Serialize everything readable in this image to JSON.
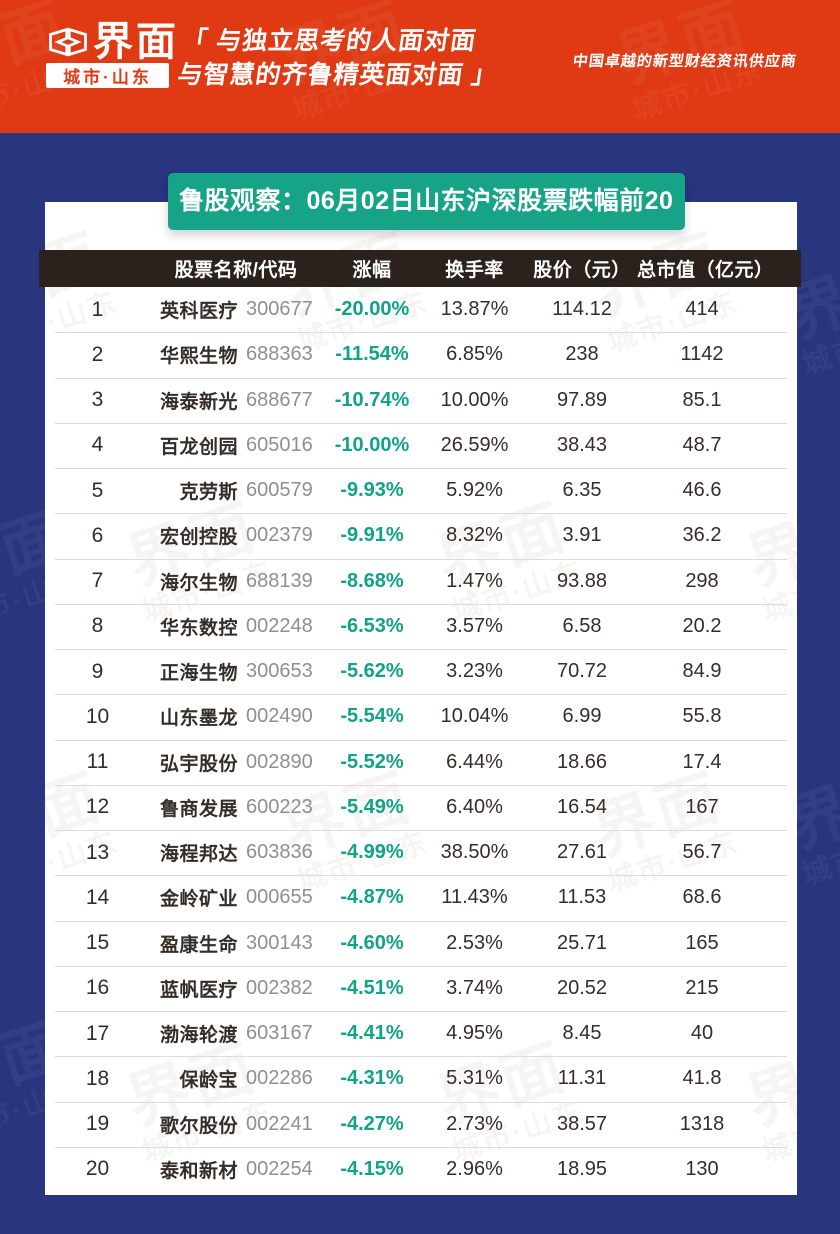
{
  "brand": {
    "name": "界面",
    "region": "城市·山东",
    "slogan_line1": "「 与独立思考的人面对面",
    "slogan_line2": "与智慧的齐鲁精英面对面 」",
    "tagline": "中国卓越的新型财经资讯供应商"
  },
  "banner": {
    "title": "鲁股观察：06月02日山东沪深股票跌幅前20"
  },
  "table": {
    "headers": {
      "name_code": "股票名称/代码",
      "change": "涨幅",
      "turnover": "换手率",
      "price": "股价（元）",
      "market_cap": "总市值（亿元）"
    },
    "rows": [
      {
        "rank": "1",
        "name": "英科医疗",
        "code": "300677",
        "change": "-20.00%",
        "turnover": "13.87%",
        "price": "114.12",
        "market_cap": "414"
      },
      {
        "rank": "2",
        "name": "华熙生物",
        "code": "688363",
        "change": "-11.54%",
        "turnover": "6.85%",
        "price": "238",
        "market_cap": "1142"
      },
      {
        "rank": "3",
        "name": "海泰新光",
        "code": "688677",
        "change": "-10.74%",
        "turnover": "10.00%",
        "price": "97.89",
        "market_cap": "85.1"
      },
      {
        "rank": "4",
        "name": "百龙创园",
        "code": "605016",
        "change": "-10.00%",
        "turnover": "26.59%",
        "price": "38.43",
        "market_cap": "48.7"
      },
      {
        "rank": "5",
        "name": "克劳斯",
        "code": "600579",
        "change": "-9.93%",
        "turnover": "5.92%",
        "price": "6.35",
        "market_cap": "46.6"
      },
      {
        "rank": "6",
        "name": "宏创控股",
        "code": "002379",
        "change": "-9.91%",
        "turnover": "8.32%",
        "price": "3.91",
        "market_cap": "36.2"
      },
      {
        "rank": "7",
        "name": "海尔生物",
        "code": "688139",
        "change": "-8.68%",
        "turnover": "1.47%",
        "price": "93.88",
        "market_cap": "298"
      },
      {
        "rank": "8",
        "name": "华东数控",
        "code": "002248",
        "change": "-6.53%",
        "turnover": "3.57%",
        "price": "6.58",
        "market_cap": "20.2"
      },
      {
        "rank": "9",
        "name": "正海生物",
        "code": "300653",
        "change": "-5.62%",
        "turnover": "3.23%",
        "price": "70.72",
        "market_cap": "84.9"
      },
      {
        "rank": "10",
        "name": "山东墨龙",
        "code": "002490",
        "change": "-5.54%",
        "turnover": "10.04%",
        "price": "6.99",
        "market_cap": "55.8"
      },
      {
        "rank": "11",
        "name": "弘宇股份",
        "code": "002890",
        "change": "-5.52%",
        "turnover": "6.44%",
        "price": "18.66",
        "market_cap": "17.4"
      },
      {
        "rank": "12",
        "name": "鲁商发展",
        "code": "600223",
        "change": "-5.49%",
        "turnover": "6.40%",
        "price": "16.54",
        "market_cap": "167"
      },
      {
        "rank": "13",
        "name": "海程邦达",
        "code": "603836",
        "change": "-4.99%",
        "turnover": "38.50%",
        "price": "27.61",
        "market_cap": "56.7"
      },
      {
        "rank": "14",
        "name": "金岭矿业",
        "code": "000655",
        "change": "-4.87%",
        "turnover": "11.43%",
        "price": "11.53",
        "market_cap": "68.6"
      },
      {
        "rank": "15",
        "name": "盈康生命",
        "code": "300143",
        "change": "-4.60%",
        "turnover": "2.53%",
        "price": "25.71",
        "market_cap": "165"
      },
      {
        "rank": "16",
        "name": "蓝帆医疗",
        "code": "002382",
        "change": "-4.51%",
        "turnover": "3.74%",
        "price": "20.52",
        "market_cap": "215"
      },
      {
        "rank": "17",
        "name": "渤海轮渡",
        "code": "603167",
        "change": "-4.41%",
        "turnover": "4.95%",
        "price": "8.45",
        "market_cap": "40"
      },
      {
        "rank": "18",
        "name": "保龄宝",
        "code": "002286",
        "change": "-4.31%",
        "turnover": "5.31%",
        "price": "11.31",
        "market_cap": "41.8"
      },
      {
        "rank": "19",
        "name": "歌尔股份",
        "code": "002241",
        "change": "-4.27%",
        "turnover": "2.73%",
        "price": "38.57",
        "market_cap": "1318"
      },
      {
        "rank": "20",
        "name": "泰和新材",
        "code": "002254",
        "change": "-4.15%",
        "turnover": "2.96%",
        "price": "18.95",
        "market_cap": "130"
      }
    ]
  },
  "watermark": {
    "brand": "界面",
    "region": "城市·山东"
  },
  "colors": {
    "header_red": "#DF3A14",
    "background_blue": "#29357F",
    "banner_green": "#17A385",
    "table_header_dark": "#2B221D",
    "change_green": "#12A287",
    "code_gray": "#8F8F8F",
    "text_ink": "#352D28"
  }
}
